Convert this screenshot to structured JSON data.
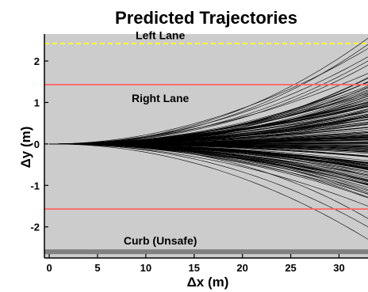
{
  "chart_data": {
    "type": "line",
    "title": "Predicted Trajectories",
    "xlabel": "Δx (m)",
    "ylabel": "Δy (m)",
    "xlim": [
      -0.5,
      33
    ],
    "ylim": [
      -2.75,
      2.65
    ],
    "x_ticks": [
      0,
      5,
      10,
      15,
      20,
      25,
      30
    ],
    "y_ticks": [
      -2,
      -1,
      0,
      1,
      2
    ],
    "grid": false,
    "background_color": "#cccccc",
    "trajectory_color": "#000000",
    "trajectories": {
      "count": 180,
      "x_start": 0,
      "x_end": 33,
      "shape": "quadratic fan from origin",
      "final_dy_range": [
        -2.3,
        2.55
      ],
      "final_dy_samples": [
        2.55,
        2.4,
        2.3,
        2.1,
        2.0,
        1.9,
        1.7,
        1.6,
        1.5,
        1.4,
        1.3,
        1.2,
        1.1,
        1.0,
        0.9,
        0.8,
        0.7,
        0.6,
        0.5,
        0.4,
        0.3,
        0.2,
        0.1,
        0.0,
        -0.1,
        -0.2,
        -0.3,
        -0.5,
        -0.7,
        -0.9,
        -1.1,
        -1.3,
        -1.5,
        -1.8,
        -2.0,
        -2.3
      ]
    },
    "reference_lines": [
      {
        "label": "Left Lane",
        "y": 2.42,
        "color": "#ffff33",
        "style": "dashed"
      },
      {
        "label": "Right Lane",
        "y": 1.43,
        "color": "#ff6666",
        "style": "solid"
      },
      {
        "label": "",
        "y": -1.57,
        "color": "#ff6666",
        "style": "solid"
      },
      {
        "label": "Curb (Unsafe)",
        "y": -2.6,
        "color": "#808080",
        "style": "thick"
      }
    ],
    "annotations": [
      {
        "text": "Left Lane",
        "x": 11.5,
        "y": 2.62
      },
      {
        "text": "Right Lane",
        "x": 11.5,
        "y": 1.1
      },
      {
        "text": "Curb (Unsafe)",
        "x": 11.5,
        "y": -2.33
      }
    ]
  }
}
